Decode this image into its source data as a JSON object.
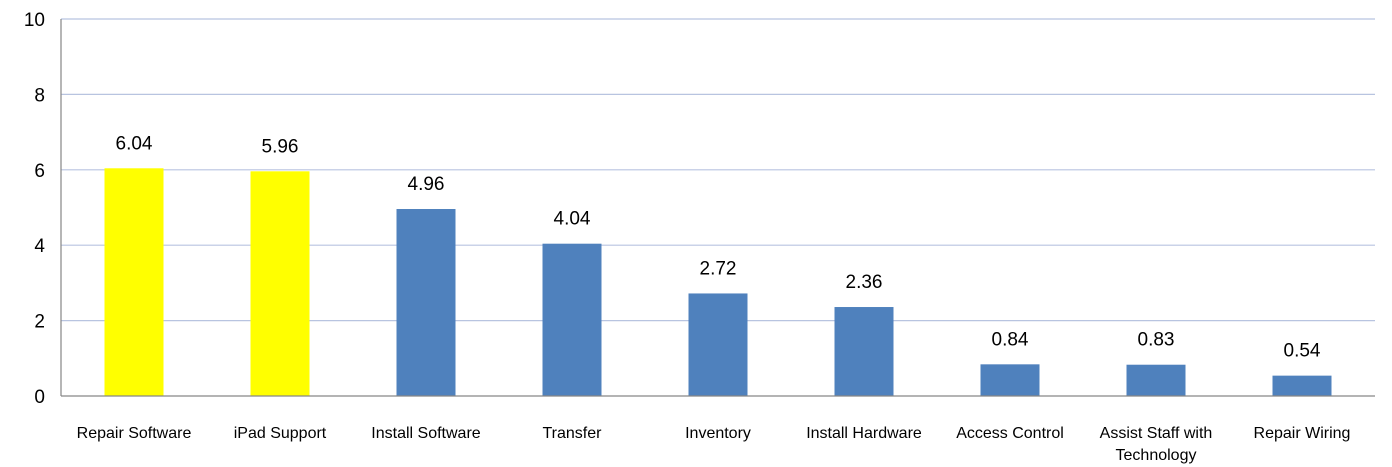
{
  "chart_data": {
    "type": "bar",
    "title": "",
    "xlabel": "",
    "ylabel": "",
    "ylim": [
      0,
      10
    ],
    "yticks": [
      0,
      2,
      4,
      6,
      8,
      10
    ],
    "grid": true,
    "legend": "none",
    "categories": [
      "Repair Software",
      "iPad Support",
      "Install Software",
      "Transfer",
      "Inventory",
      "Install Hardware",
      "Access Control",
      "Assist Staff with Technology",
      "Repair Wiring"
    ],
    "category_label_lines": [
      [
        "Repair Software"
      ],
      [
        "iPad Support"
      ],
      [
        "Install Software"
      ],
      [
        "Transfer"
      ],
      [
        "Inventory"
      ],
      [
        "Install Hardware"
      ],
      [
        "Access Control"
      ],
      [
        "Assist Staff with",
        "Technology"
      ],
      [
        "Repair Wiring"
      ]
    ],
    "values": [
      6.04,
      5.96,
      4.96,
      4.04,
      2.72,
      2.36,
      0.84,
      0.83,
      0.54
    ],
    "data_labels": [
      "6.04",
      "5.96",
      "4.96",
      "4.04",
      "2.72",
      "2.36",
      "0.84",
      "0.83",
      "0.54"
    ],
    "bar_colors": [
      "#ffff00",
      "#ffff00",
      "#4f81bd",
      "#4f81bd",
      "#4f81bd",
      "#4f81bd",
      "#4f81bd",
      "#4f81bd",
      "#4f81bd"
    ],
    "gridline_color": "#b8c4e0",
    "axis_color": "#868686"
  }
}
